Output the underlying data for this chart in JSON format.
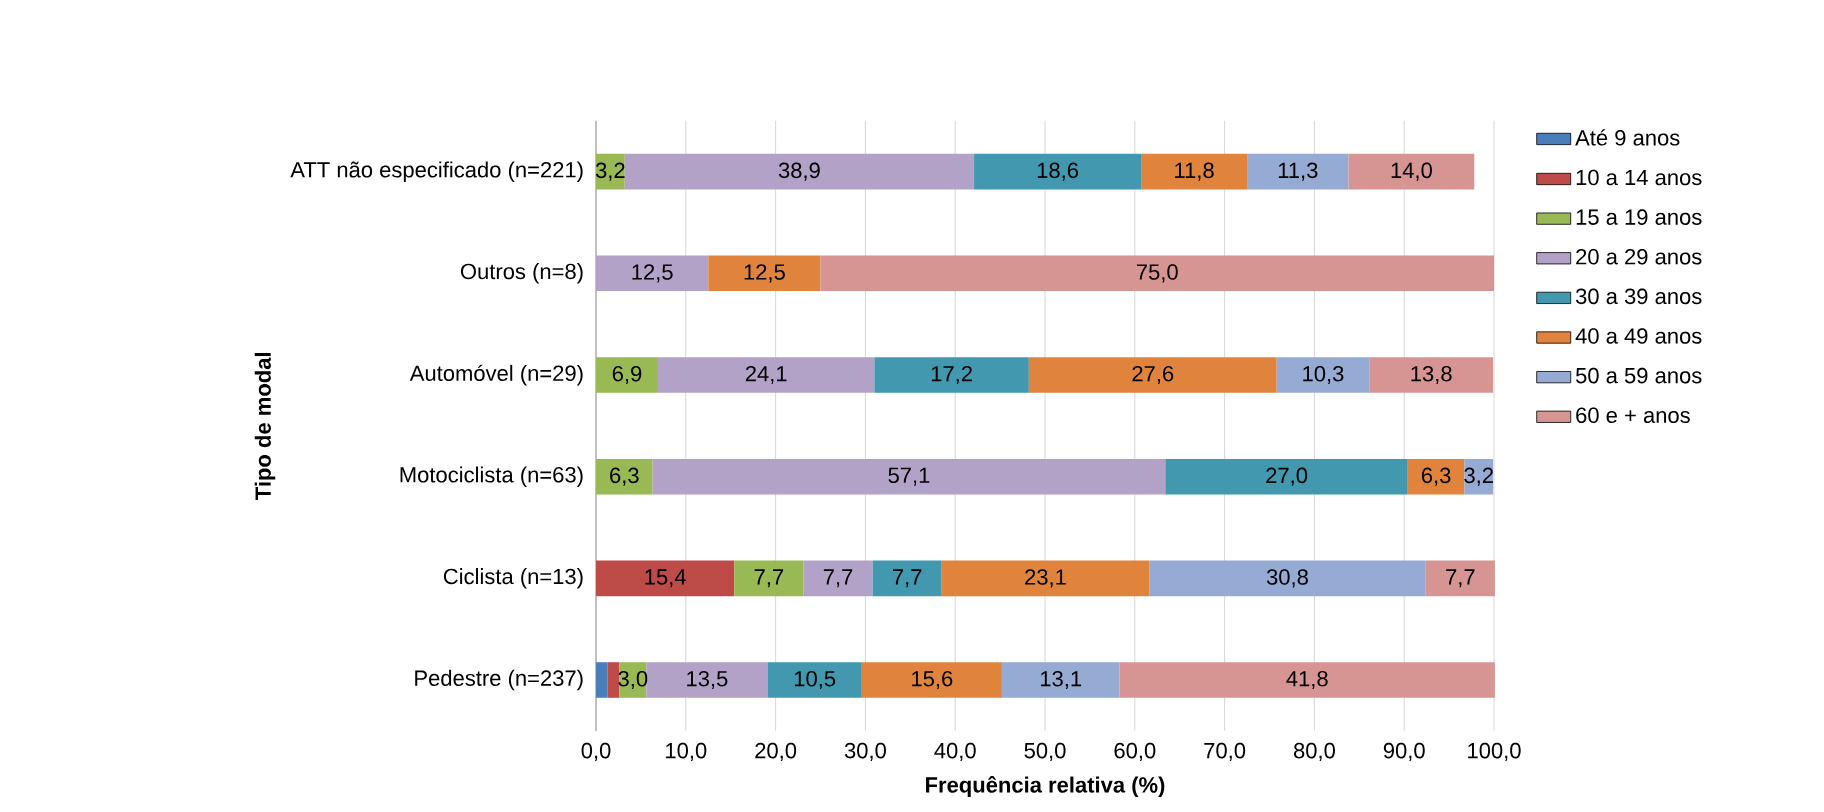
{
  "chart_data": {
    "type": "bar",
    "orientation": "horizontal",
    "stacked": true,
    "xlabel": "Frequência relativa (%)",
    "ylabel": "Tipo de modal",
    "categories": [
      "ATT não especificado (n=221)",
      "Outros (n=8)",
      "Automóvel (n=29)",
      "Motociclista (n=63)",
      "Ciclista (n=13)",
      "Pedestre (n=237)"
    ],
    "series": [
      {
        "name": "Até 9 anos",
        "color": "#4a7ebb",
        "values": [
          null,
          null,
          null,
          null,
          null,
          1.3
        ],
        "value_labels": [
          null,
          null,
          null,
          null,
          null,
          null
        ]
      },
      {
        "name": "10 a 14 anos",
        "color": "#be4b48",
        "values": [
          null,
          null,
          null,
          null,
          15.4,
          1.3
        ],
        "value_labels": [
          null,
          null,
          null,
          null,
          "15,4",
          null
        ]
      },
      {
        "name": "15 a 19 anos",
        "color": "#98b954",
        "values": [
          3.2,
          null,
          6.9,
          6.3,
          7.7,
          3.0
        ],
        "value_labels": [
          "3,2",
          null,
          "6,9",
          "6,3",
          "7,7",
          "3,0"
        ]
      },
      {
        "name": "20 a 29 anos",
        "color": "#b3a2c7",
        "values": [
          38.9,
          12.5,
          24.1,
          57.1,
          7.7,
          13.5
        ],
        "value_labels": [
          "38,9",
          "12,5",
          "24,1",
          "57,1",
          "7,7",
          "13,5"
        ]
      },
      {
        "name": "30 a 39 anos",
        "color": "#4198af",
        "values": [
          18.6,
          null,
          17.2,
          27.0,
          7.7,
          10.5
        ],
        "value_labels": [
          "18,6",
          null,
          "17,2",
          "27,0",
          "7,7",
          "10,5"
        ]
      },
      {
        "name": "40 a 49 anos",
        "color": "#e0843d",
        "values": [
          11.8,
          12.5,
          27.6,
          6.3,
          23.1,
          15.6
        ],
        "value_labels": [
          "11,8",
          "12,5",
          "27,6",
          "6,3",
          "23,1",
          "15,6"
        ]
      },
      {
        "name": "50 a 59 anos",
        "color": "#95abd3",
        "values": [
          11.3,
          null,
          10.3,
          3.2,
          30.8,
          13.1
        ],
        "value_labels": [
          "11,3",
          null,
          "10,3",
          "3,2",
          "30,8",
          "13,1"
        ]
      },
      {
        "name": "60 e + anos",
        "color": "#d69593",
        "values": [
          14.0,
          75.0,
          13.8,
          null,
          7.7,
          41.8
        ],
        "value_labels": [
          "14,0",
          "75,0",
          "13,8",
          null,
          "7,7",
          "41,8"
        ]
      }
    ],
    "xlim": [
      0,
      100
    ],
    "xticks": [
      {
        "value": 0,
        "label": "0,0"
      },
      {
        "value": 10,
        "label": "10,0"
      },
      {
        "value": 20,
        "label": "20,0"
      },
      {
        "value": 30,
        "label": "30,0"
      },
      {
        "value": 40,
        "label": "40,0"
      },
      {
        "value": 50,
        "label": "50,0"
      },
      {
        "value": 60,
        "label": "60,0"
      },
      {
        "value": 70,
        "label": "70,0"
      },
      {
        "value": 80,
        "label": "80,0"
      },
      {
        "value": 90,
        "label": "90,0"
      },
      {
        "value": 100,
        "label": "100,0"
      }
    ],
    "grid": "x",
    "legend": "right"
  }
}
